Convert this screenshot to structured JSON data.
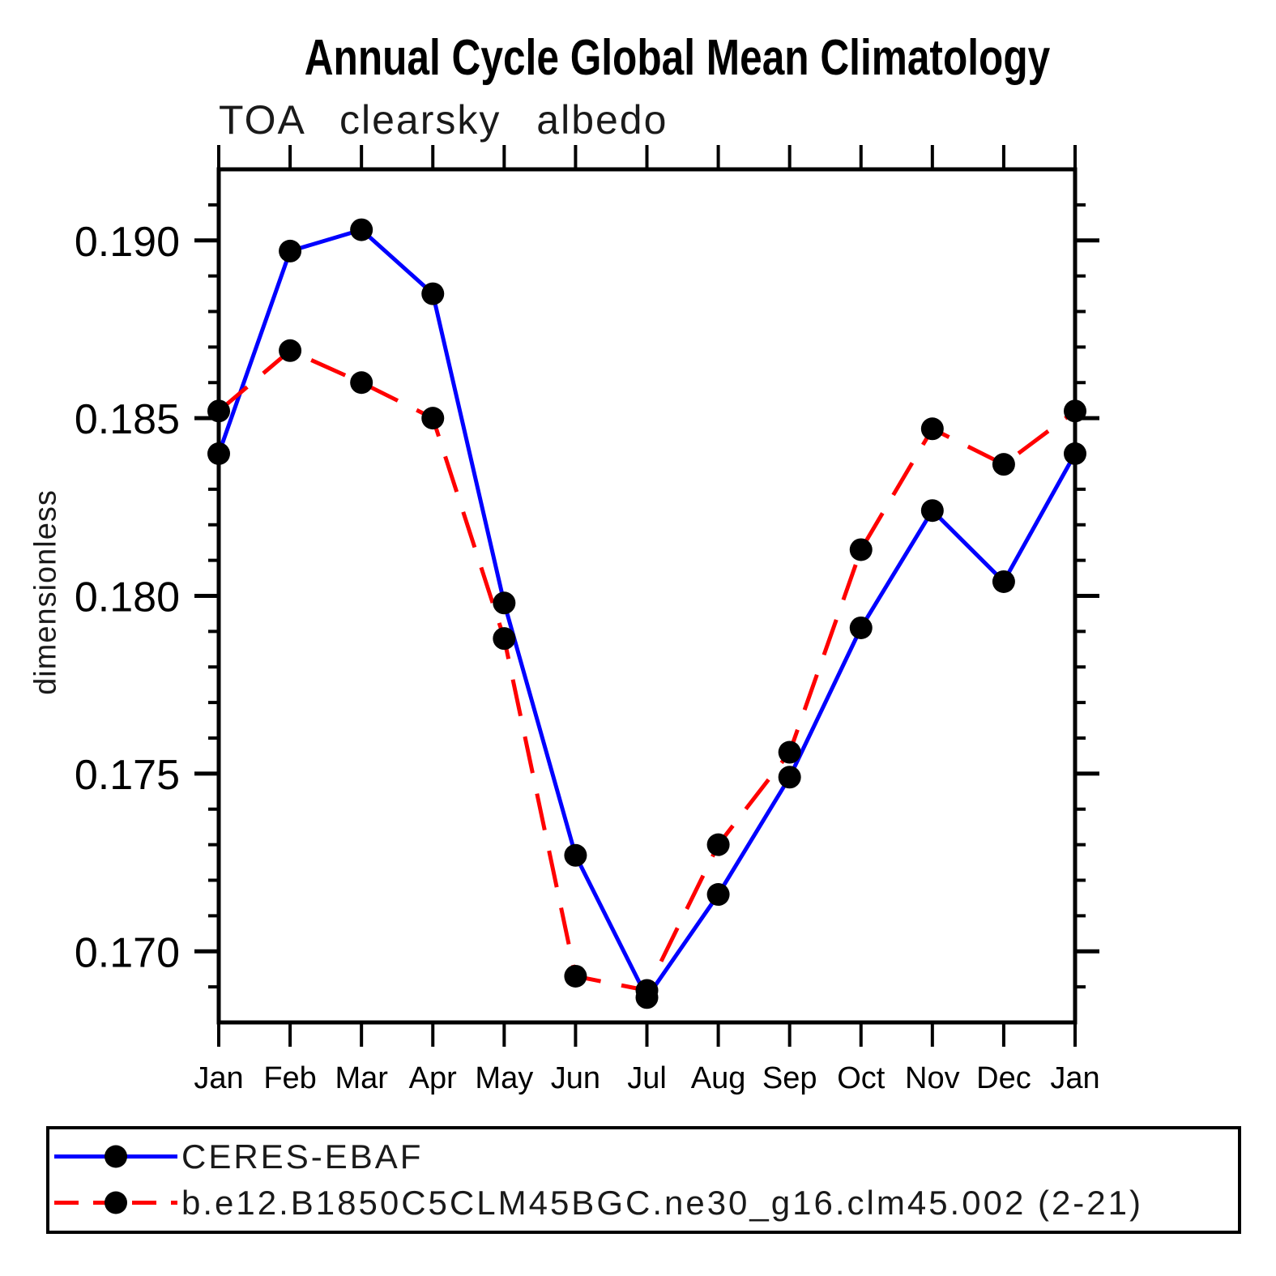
{
  "chart_data": {
    "type": "line",
    "title": "Annual Cycle Global Mean Climatology",
    "subtitle": "TOA clearsky albedo",
    "ylabel": "dimensionless",
    "xlabel": "",
    "categories": [
      "Jan",
      "Feb",
      "Mar",
      "Apr",
      "May",
      "Jun",
      "Jul",
      "Aug",
      "Sep",
      "Oct",
      "Nov",
      "Dec",
      "Jan"
    ],
    "ylim": [
      0.168,
      0.192
    ],
    "minor_tick_step": 0.001,
    "yticks_major": {
      "values": [
        0.19,
        0.185,
        0.18,
        0.175,
        0.17
      ],
      "labels": [
        "0.190",
        "0.185",
        "0.180",
        "0.175",
        "0.170"
      ]
    },
    "grid": false,
    "legend_position": "bottom-box",
    "series": [
      {
        "name": "CERES-EBAF",
        "color": "#0000ff",
        "line_style": "solid",
        "marker": "circle",
        "marker_color": "#000000",
        "values": [
          0.184,
          0.1897,
          0.1903,
          0.1885,
          0.1798,
          0.1727,
          0.1687,
          0.1716,
          0.1749,
          0.1791,
          0.1824,
          0.1804,
          0.184
        ]
      },
      {
        "name": "b.e12.B1850C5CLM45BGC.ne30_g16.clm45.002 (2-21)",
        "color": "#ff0000",
        "line_style": "dashed",
        "marker": "circle",
        "marker_color": "#000000",
        "values": [
          0.1852,
          0.1869,
          0.186,
          0.185,
          0.1788,
          0.1693,
          0.1689,
          0.173,
          0.1756,
          0.1813,
          0.1847,
          0.1837,
          0.1852
        ]
      }
    ]
  }
}
